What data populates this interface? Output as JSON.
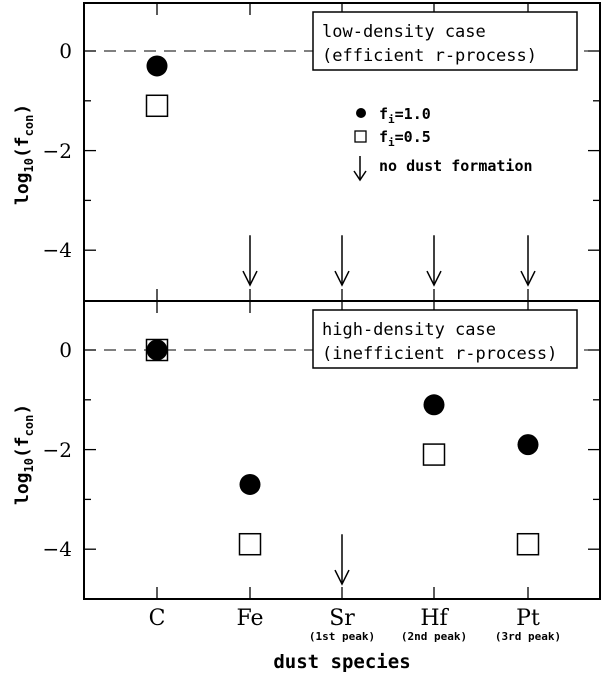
{
  "chart_data": [
    {
      "type": "scatter",
      "panel": "top",
      "label_line1": "low-density case",
      "label_line2": "(efficient r-process)",
      "ylabel_prefix": "log",
      "ylabel_sub1": "10",
      "ylabel_mid": "(f",
      "ylabel_sub2": "con",
      "ylabel_suffix": ")",
      "ylim": [
        -5.0,
        1.0
      ],
      "yticks": [
        0,
        -2,
        -4
      ],
      "ytick_labels": [
        "0",
        "−2",
        "−4"
      ],
      "categories": [
        "C",
        "Fe",
        "Sr",
        "Hf",
        "Pt"
      ],
      "series": [
        {
          "name": "f_i=1.0",
          "marker": "filled-circle",
          "values": [
            -0.3,
            null,
            null,
            null,
            null
          ]
        },
        {
          "name": "f_i=0.5",
          "marker": "open-square",
          "values": [
            -1.1,
            null,
            null,
            null,
            null
          ]
        }
      ],
      "no_dust_formation": [
        "Fe",
        "Sr",
        "Hf",
        "Pt"
      ],
      "reference_line": 0
    },
    {
      "type": "scatter",
      "panel": "bottom",
      "label_line1": "high-density case",
      "label_line2": "(inefficient r-process)",
      "ylabel_prefix": "log",
      "ylabel_sub1": "10",
      "ylabel_mid": "(f",
      "ylabel_sub2": "con",
      "ylabel_suffix": ")",
      "ylim": [
        -5.0,
        1.0
      ],
      "yticks": [
        0,
        -2,
        -4
      ],
      "ytick_labels": [
        "0",
        "−2",
        "−4"
      ],
      "categories": [
        "C",
        "Fe",
        "Sr",
        "Hf",
        "Pt"
      ],
      "series": [
        {
          "name": "f_i=1.0",
          "marker": "filled-circle",
          "values": [
            0.0,
            -2.7,
            null,
            -1.1,
            -1.9
          ]
        },
        {
          "name": "f_i=0.5",
          "marker": "open-square",
          "values": [
            0.0,
            -3.9,
            null,
            -2.1,
            -3.9
          ]
        }
      ],
      "no_dust_formation": [
        "Sr"
      ],
      "reference_line": 0
    }
  ],
  "legend": {
    "item1_main": "f",
    "item1_sub": "i",
    "item1_val": "=1.0",
    "item2_main": "f",
    "item2_sub": "i",
    "item2_val": "=0.5",
    "item3": "no dust formation"
  },
  "xaxis": {
    "tick_labels": [
      "C",
      "Fe",
      "Sr",
      "Hf",
      "Pt"
    ],
    "sub_labels": [
      "",
      "",
      "(1st peak)",
      "(2nd peak)",
      "(3rd peak)"
    ],
    "xlabel": "dust species"
  },
  "colors": {
    "ink": "#000000",
    "background": "#ffffff"
  }
}
